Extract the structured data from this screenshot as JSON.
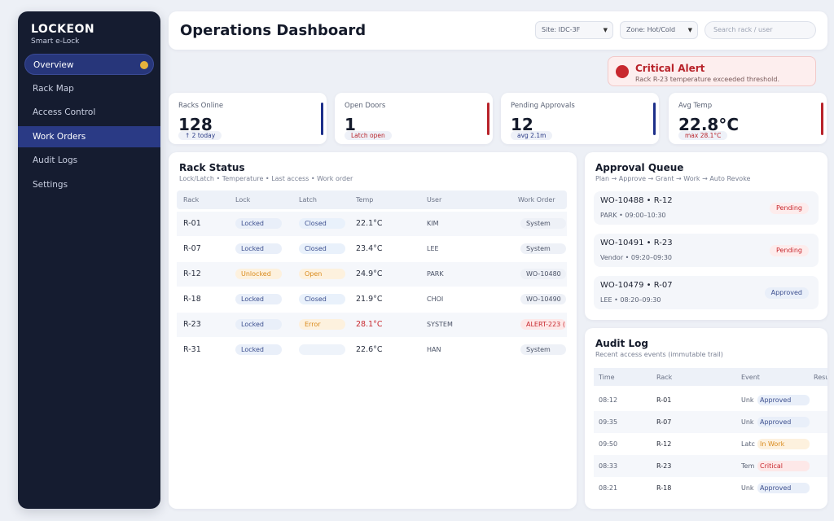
{
  "sidebar": {
    "brand": "LOCKEON",
    "brand_sub": "Smart e-Lock",
    "items": [
      {
        "label": "Overview"
      },
      {
        "label": "Rack Map"
      },
      {
        "label": "Access Control"
      },
      {
        "label": "Work Orders"
      },
      {
        "label": "Audit Logs"
      },
      {
        "label": "Settings"
      }
    ]
  },
  "header": {
    "title": "Operations Dashboard",
    "site_select": "Site: IDC-3F",
    "zone_select": "Zone: Hot/Cold",
    "search_placeholder": "Search rack / user"
  },
  "alert": {
    "title": "Critical Alert",
    "message": "Rack R-23 temperature exceeded threshold."
  },
  "kpis": [
    {
      "label": "Racks Online",
      "value": "128",
      "sub": "↑ 2 today",
      "sub_color": "#2a3a85",
      "bar_color": "#1d2f8a"
    },
    {
      "label": "Open Doors",
      "value": "1",
      "sub": "Latch open",
      "sub_color": "#b8232a",
      "bar_color": "#b8232a"
    },
    {
      "label": "Pending Approvals",
      "value": "12",
      "sub": "avg 2.1m",
      "sub_color": "#2a3a85",
      "bar_color": "#1d2f8a"
    },
    {
      "label": "Avg Temp",
      "value": "22.8°C",
      "sub": "max 28.1°C",
      "sub_color": "#b8232a",
      "bar_color": "#b8232a"
    }
  ],
  "rack_status": {
    "title": "Rack Status",
    "subtitle": "Lock/Latch • Temperature • Last access • Work order",
    "headers": [
      "Rack",
      "Lock",
      "Latch",
      "Temp",
      "User",
      "Work Order"
    ],
    "rows": [
      {
        "rack": "R-01",
        "lock": "Locked",
        "latch": "Closed",
        "temp": "22.1°C",
        "user": "KIM",
        "wo": "System"
      },
      {
        "rack": "R-07",
        "lock": "Locked",
        "latch": "Closed",
        "temp": "23.4°C",
        "user": "LEE",
        "wo": "System"
      },
      {
        "rack": "R-12",
        "lock": "Unlocked",
        "latch": "Open",
        "temp": "24.9°C",
        "user": "PARK",
        "wo": "WO-10480"
      },
      {
        "rack": "R-18",
        "lock": "Locked",
        "latch": "Closed",
        "temp": "21.9°C",
        "user": "CHOI",
        "wo": "WO-10490"
      },
      {
        "rack": "R-23",
        "lock": "Locked",
        "latch": "Error",
        "temp": "28.1°C",
        "user": "SYSTEM",
        "wo": "ALERT-223 ("
      },
      {
        "rack": "R-31",
        "lock": "Locked",
        "latch": "",
        "temp": "22.6°C",
        "user": "HAN",
        "wo": "System"
      }
    ]
  },
  "approval_queue": {
    "title": "Approval Queue",
    "subtitle": "Plan → Approve → Grant → Work → Auto Revoke",
    "items": [
      {
        "title": "WO-10488  •  R-12",
        "meta": "PARK  •  09:00–10:30",
        "status": "Pending"
      },
      {
        "title": "WO-10491  •  R-23",
        "meta": "Vendor  •  09:20–09:30",
        "status": "Pending"
      },
      {
        "title": "WO-10479  •  R-07",
        "meta": "LEE  •  08:20–09:30",
        "status": "Approved"
      }
    ]
  },
  "audit_log": {
    "title": "Audit Log",
    "subtitle": "Recent access events (immutable trail)",
    "headers": [
      "Time",
      "Rack",
      "Event",
      "Result"
    ],
    "rows": [
      {
        "time": "08:12",
        "rack": "R-01",
        "event": "Unk",
        "result": "Approved"
      },
      {
        "time": "09:35",
        "rack": "R-07",
        "event": "Unk",
        "result": "Approved"
      },
      {
        "time": "09:50",
        "rack": "R-12",
        "event": "Latc",
        "result": "In Work"
      },
      {
        "time": "08:33",
        "rack": "R-23",
        "event": "Tem",
        "result": "Critical"
      },
      {
        "time": "08:21",
        "rack": "R-18",
        "event": "Unk",
        "result": "Approved"
      }
    ]
  },
  "colors": {
    "accent": "#1d2f8a",
    "danger": "#b8232a",
    "warning": "#d98a1c",
    "sidebar_bg": "#151c30"
  }
}
